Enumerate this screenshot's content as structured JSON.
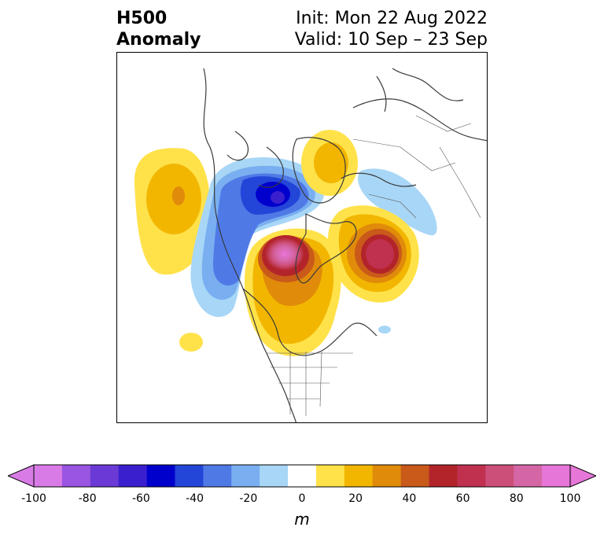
{
  "title": {
    "left_line1": "H500",
    "left_line2": "Anomaly",
    "init": "Init: Mon 22 Aug 2022",
    "valid": "Valid: 10 Sep – 23 Sep"
  },
  "colorbar": {
    "unit": "m",
    "tick_values": [
      -100,
      -80,
      -60,
      -40,
      -20,
      0,
      20,
      40,
      60,
      80,
      100
    ],
    "colors": [
      "#d97be6",
      "#9a55e1",
      "#6b3ad6",
      "#3a1fcf",
      "#0000cd",
      "#2345d8",
      "#4f7ae6",
      "#79aff0",
      "#a8d6f6",
      "#ffffff",
      "#ffe24a",
      "#f2b600",
      "#e08b0a",
      "#c95a1a",
      "#b3242a",
      "#c0304f",
      "#cc4f79",
      "#d566a6",
      "#e676d8"
    ],
    "min_arrow_color": "#d97be6",
    "max_arrow_color": "#e676d8"
  },
  "map": {
    "projection": "north-polar-stereographic",
    "region": "Northern Hemisphere, centered on North America"
  }
}
